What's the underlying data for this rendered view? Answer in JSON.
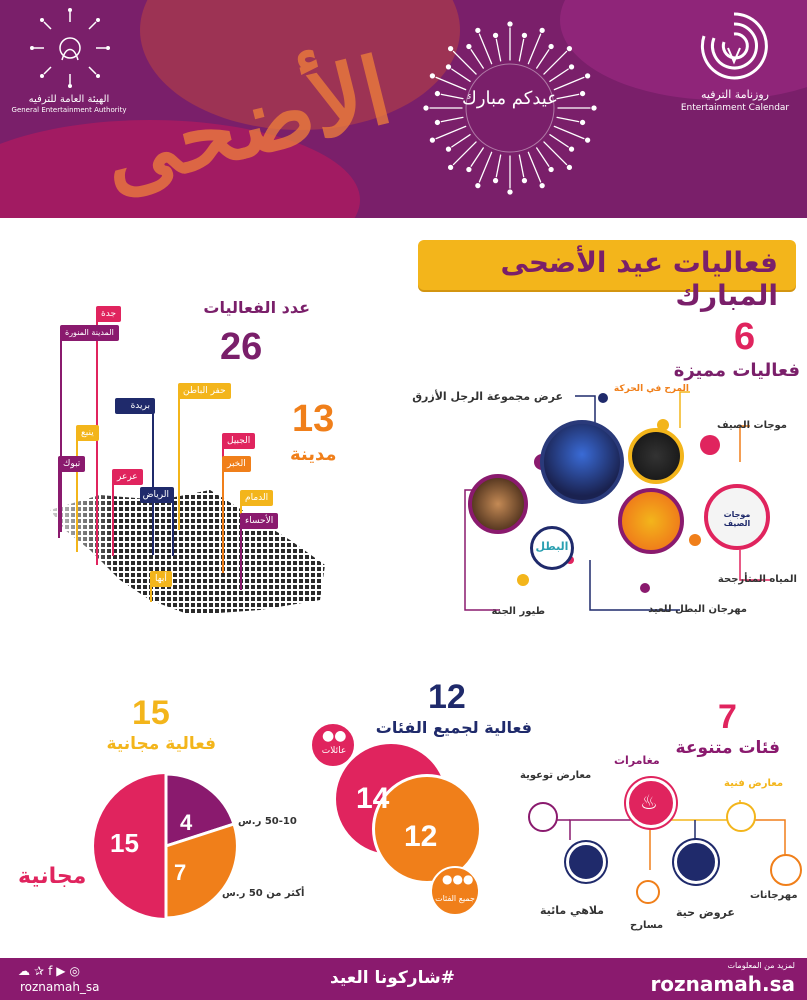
{
  "header": {
    "gea_name_ar": "الهيئة العامة للترفيه",
    "gea_name_en": "General Entertainment Authority",
    "calendar_name_ar": "روزنامة الترفيه",
    "calendar_name_en": "Entertainment Calendar",
    "eid_greeting": "عيدكم مبارك",
    "decor_word": "الأضحى"
  },
  "banner": {
    "title": "فعاليات عيد الأضحى المبارك"
  },
  "map": {
    "events_label": "عدد الفعاليات",
    "events_count": "26",
    "cities_count": "13",
    "cities_label": "مدينة",
    "cities": [
      "جدة",
      "المدينة المنورة",
      "حفر الباطن",
      "بريدة",
      "ينبع",
      "الجبيل",
      "تبوك",
      "عرعر",
      "الخبر",
      "الرياض",
      "الدمام",
      "الأحساء",
      "أبها"
    ]
  },
  "featured": {
    "count": "6",
    "label": "فعاليات مميزة",
    "items": [
      "عرض مجموعة الرجل الأزرق",
      "المرح في الحركة",
      "موجات الصيف",
      "المياه المتأرجحة",
      "مهرجان البطل للعيد",
      "طيور الجنة"
    ],
    "thumb_text": "موجات الصيف",
    "thumb_text2": "البطل"
  },
  "free": {
    "count": "15",
    "label": "فعالية مجانية",
    "slices": [
      {
        "value": "15",
        "color": "#e0245e"
      },
      {
        "value": "4",
        "label": "50-10 ر.س",
        "color": "#8a1a6e"
      },
      {
        "value": "7",
        "label": "أكثر من 50 ر.س",
        "color": "#f07f1a"
      }
    ],
    "free_word": "مجانية"
  },
  "categories_all": {
    "count": "12",
    "label": "فعالية لجميع الفئات",
    "families_label": "عائلات",
    "families_value": "14",
    "all_label": "جميع الفئات",
    "all_value": "12"
  },
  "varied": {
    "count": "7",
    "label": "فئات متنوعة",
    "items": [
      "مغامرات",
      "معارض توعوية",
      "معارض فنية",
      "ملاهي مائية",
      "عروض حية",
      "مهرجانات",
      "مسارح"
    ]
  },
  "footer": {
    "handle": "roznamah_sa",
    "hashtag": "#شاركونا العيد",
    "more_info": "لمزيد من المعلومات",
    "site": "roznamah.sa"
  },
  "colors": {
    "purple": "#7a1f6a",
    "magenta": "#e0245e",
    "orange": "#f07f1a",
    "yellow": "#f3b51b",
    "teal": "#2a9fb0",
    "navy": "#1f2a6b"
  }
}
